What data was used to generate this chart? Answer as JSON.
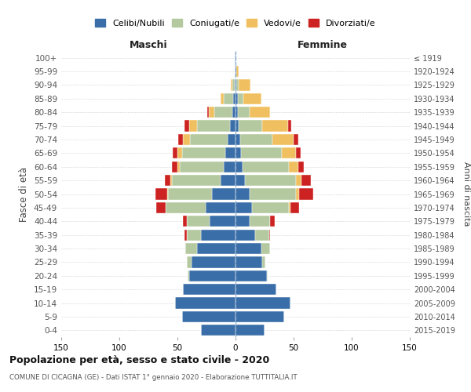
{
  "age_groups": [
    "0-4",
    "5-9",
    "10-14",
    "15-19",
    "20-24",
    "25-29",
    "30-34",
    "35-39",
    "40-44",
    "45-49",
    "50-54",
    "55-59",
    "60-64",
    "65-69",
    "70-74",
    "75-79",
    "80-84",
    "85-89",
    "90-94",
    "95-99",
    "100+"
  ],
  "birth_years": [
    "2015-2019",
    "2010-2014",
    "2005-2009",
    "2000-2004",
    "1995-1999",
    "1990-1994",
    "1985-1989",
    "1980-1984",
    "1975-1979",
    "1970-1974",
    "1965-1969",
    "1960-1964",
    "1955-1959",
    "1950-1954",
    "1945-1949",
    "1940-1944",
    "1935-1939",
    "1930-1934",
    "1925-1929",
    "1920-1924",
    "≤ 1919"
  ],
  "maschi": {
    "celibi": [
      30,
      46,
      52,
      45,
      40,
      38,
      33,
      30,
      22,
      26,
      20,
      13,
      10,
      9,
      7,
      5,
      3,
      2,
      1,
      1,
      1
    ],
    "coniugati": [
      0,
      0,
      0,
      0,
      1,
      4,
      10,
      12,
      20,
      34,
      38,
      42,
      38,
      37,
      32,
      28,
      15,
      8,
      2,
      0,
      0
    ],
    "vedovi": [
      0,
      0,
      0,
      0,
      0,
      0,
      0,
      0,
      0,
      0,
      1,
      1,
      2,
      4,
      6,
      7,
      5,
      3,
      1,
      0,
      0
    ],
    "divorziati": [
      0,
      0,
      0,
      0,
      0,
      0,
      0,
      2,
      3,
      8,
      10,
      5,
      5,
      4,
      4,
      4,
      1,
      0,
      0,
      0,
      0
    ]
  },
  "femmine": {
    "nubili": [
      25,
      42,
      47,
      35,
      27,
      23,
      22,
      17,
      12,
      14,
      12,
      8,
      6,
      5,
      4,
      3,
      2,
      2,
      1,
      1,
      1
    ],
    "coniugate": [
      0,
      0,
      0,
      0,
      1,
      3,
      8,
      12,
      18,
      32,
      40,
      44,
      40,
      35,
      28,
      20,
      10,
      5,
      2,
      0,
      0
    ],
    "vedove": [
      0,
      0,
      0,
      0,
      0,
      0,
      0,
      0,
      0,
      1,
      3,
      5,
      8,
      12,
      18,
      22,
      18,
      15,
      10,
      2,
      0
    ],
    "divorziate": [
      0,
      0,
      0,
      0,
      0,
      0,
      0,
      1,
      4,
      8,
      12,
      8,
      5,
      4,
      4,
      3,
      0,
      0,
      0,
      0,
      0
    ]
  },
  "colors": {
    "celibi": "#3a6ea8",
    "coniugati": "#b5c9a0",
    "vedovi": "#f0c060",
    "divorziati": "#cc2222"
  },
  "xlim": 150,
  "title": "Popolazione per età, sesso e stato civile - 2020",
  "subtitle": "COMUNE DI CICAGNA (GE) - Dati ISTAT 1° gennaio 2020 - Elaborazione TUTTITALIA.IT",
  "ylabel_left": "Fasce di età",
  "ylabel_right": "Anni di nascita",
  "legend_labels": [
    "Celibi/Nubili",
    "Coniugati/e",
    "Vedovi/e",
    "Divorziati/e"
  ],
  "maschi_label": "Maschi",
  "femmine_label": "Femmine",
  "background_color": "#ffffff",
  "grid_color": "#cccccc"
}
